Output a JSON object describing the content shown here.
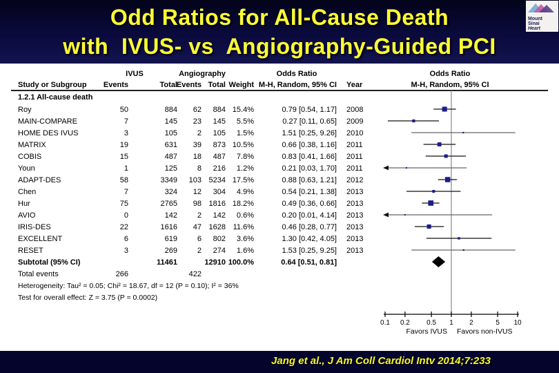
{
  "title": {
    "line1": "Odd Ratios for All-Cause Death",
    "line2": "with  IVUS- vs  Angiography-Guided PCI"
  },
  "logo": {
    "line1": "Mount",
    "line2": "Sinai",
    "line3": "Heart"
  },
  "footer": {
    "citation": "Jang et al., J Am Coll Cardiol Intv 2014;7:233"
  },
  "colors": {
    "band_navy": "#0a0a3e",
    "title_yellow": "#ffff33",
    "citation_yellow": "#f6f62c",
    "marker_blue": "#1c1c8e",
    "diamond_black": "#000000"
  },
  "chart_data": {
    "type": "forest",
    "scale": "log",
    "group_headers": {
      "ivus": "IVUS",
      "angiography": "Angiography",
      "odds_ratio": "Odds Ratio"
    },
    "column_headers": {
      "study": "Study or Subgroup",
      "events": "Events",
      "total": "Total",
      "weight": "Weight",
      "mh": "M-H, Random, 95% CI",
      "year": "Year"
    },
    "plot_header": {
      "line1": "Odds Ratio",
      "line2": "M-H, Random, 95% CI"
    },
    "section": "1.2.1 All-cause death",
    "studies": [
      {
        "name": "Roy",
        "ivus_events": 50,
        "ivus_total": 884,
        "angio_events": 62,
        "angio_total": 884,
        "weight": "15.4%",
        "or": 0.79,
        "ci_low": 0.54,
        "ci_high": 1.17,
        "ci_text": "0.79 [0.54, 1.17]",
        "year": 2008
      },
      {
        "name": "MAIN-COMPARE",
        "ivus_events": 7,
        "ivus_total": 145,
        "angio_events": 23,
        "angio_total": 145,
        "weight": "5.5%",
        "or": 0.27,
        "ci_low": 0.11,
        "ci_high": 0.65,
        "ci_text": "0.27 [0.11, 0.65]",
        "year": 2009
      },
      {
        "name": "HOME DES IVUS",
        "ivus_events": 3,
        "ivus_total": 105,
        "angio_events": 2,
        "angio_total": 105,
        "weight": "1.5%",
        "or": 1.51,
        "ci_low": 0.25,
        "ci_high": 9.26,
        "ci_text": "1.51 [0.25, 9.26]",
        "year": 2010
      },
      {
        "name": "MATRIX",
        "ivus_events": 19,
        "ivus_total": 631,
        "angio_events": 39,
        "angio_total": 873,
        "weight": "10.5%",
        "or": 0.66,
        "ci_low": 0.38,
        "ci_high": 1.16,
        "ci_text": "0.66 [0.38, 1.16]",
        "year": 2011
      },
      {
        "name": "COBIS",
        "ivus_events": 15,
        "ivus_total": 487,
        "angio_events": 18,
        "angio_total": 487,
        "weight": "7.8%",
        "or": 0.83,
        "ci_low": 0.41,
        "ci_high": 1.66,
        "ci_text": "0.83 [0.41, 1.66]",
        "year": 2011
      },
      {
        "name": "Youn",
        "ivus_events": 1,
        "ivus_total": 125,
        "angio_events": 8,
        "angio_total": 216,
        "weight": "1.2%",
        "or": 0.21,
        "ci_low": 0.03,
        "ci_high": 1.7,
        "ci_text": "0.21 [0.03, 1.70]",
        "year": 2011
      },
      {
        "name": "ADAPT-DES",
        "ivus_events": 58,
        "ivus_total": 3349,
        "angio_events": 103,
        "angio_total": 5234,
        "weight": "17.5%",
        "or": 0.88,
        "ci_low": 0.63,
        "ci_high": 1.21,
        "ci_text": "0.88 [0.63, 1.21]",
        "year": 2012
      },
      {
        "name": "Chen",
        "ivus_events": 7,
        "ivus_total": 324,
        "angio_events": 12,
        "angio_total": 304,
        "weight": "4.9%",
        "or": 0.54,
        "ci_low": 0.21,
        "ci_high": 1.38,
        "ci_text": "0.54 [0.21, 1.38]",
        "year": 2013
      },
      {
        "name": "Hur",
        "ivus_events": 75,
        "ivus_total": 2765,
        "angio_events": 98,
        "angio_total": 1816,
        "weight": "18.2%",
        "or": 0.49,
        "ci_low": 0.36,
        "ci_high": 0.66,
        "ci_text": "0.49 [0.36, 0.66]",
        "year": 2013
      },
      {
        "name": "AVIO",
        "ivus_events": 0,
        "ivus_total": 142,
        "angio_events": 2,
        "angio_total": 142,
        "weight": "0.6%",
        "or": 0.2,
        "ci_low": 0.01,
        "ci_high": 4.14,
        "ci_text": "0.20 [0.01, 4.14]",
        "year": 2013
      },
      {
        "name": "IRIS-DES",
        "ivus_events": 22,
        "ivus_total": 1616,
        "angio_events": 47,
        "angio_total": 1628,
        "weight": "11.6%",
        "or": 0.46,
        "ci_low": 0.28,
        "ci_high": 0.77,
        "ci_text": "0.46 [0.28, 0.77]",
        "year": 2013
      },
      {
        "name": "EXCELLENT",
        "ivus_events": 6,
        "ivus_total": 619,
        "angio_events": 6,
        "angio_total": 802,
        "weight": "3.6%",
        "or": 1.3,
        "ci_low": 0.42,
        "ci_high": 4.05,
        "ci_text": "1.30 [0.42, 4.05]",
        "year": 2013
      },
      {
        "name": "RESET",
        "ivus_events": 3,
        "ivus_total": 269,
        "angio_events": 2,
        "angio_total": 274,
        "weight": "1.6%",
        "or": 1.53,
        "ci_low": 0.25,
        "ci_high": 9.25,
        "ci_text": "1.53 [0.25, 9.25]",
        "year": 2013
      }
    ],
    "subtotal": {
      "label": "Subtotal (95% CI)",
      "ivus_total": 11461,
      "angio_total": 12910,
      "weight": "100.0%",
      "or": 0.64,
      "ci_low": 0.51,
      "ci_high": 0.81,
      "ci_text": "0.64 [0.51, 0.81]"
    },
    "total_events": {
      "label": "Total events",
      "ivus": 266,
      "angio": 422
    },
    "heterogeneity": "Heterogeneity: Tau² = 0.05; Chi² = 18.67, df = 12 (P = 0.10); I² = 36%",
    "overall_effect": "Test for overall effect: Z = 3.75 (P = 0.0002)",
    "axis": {
      "ticks": [
        0.1,
        0.2,
        0.5,
        1,
        2,
        5,
        10
      ],
      "xlim": [
        0.1,
        10
      ],
      "left_label": "Favors IVUS",
      "right_label": "Favors non-IVUS"
    }
  }
}
